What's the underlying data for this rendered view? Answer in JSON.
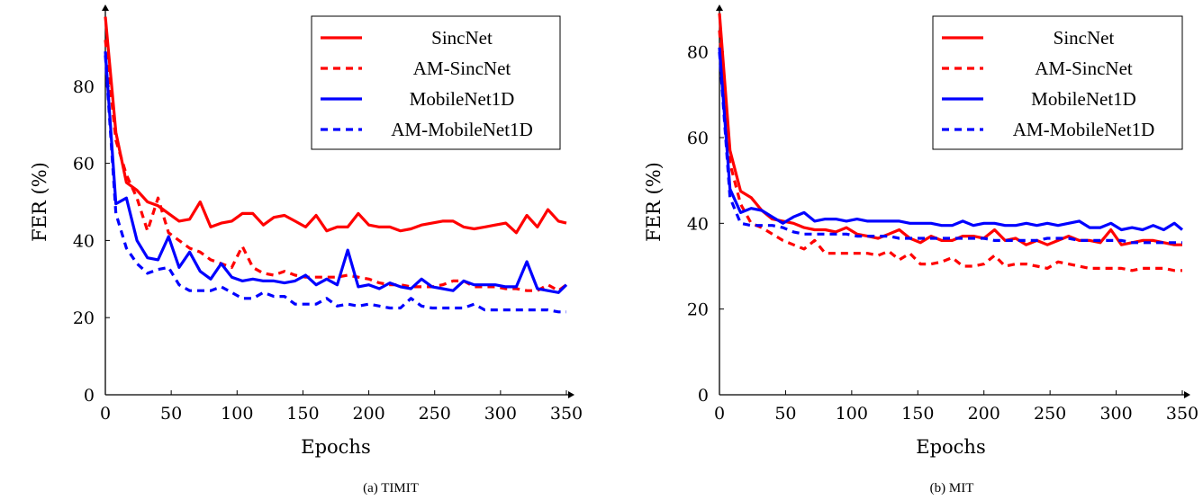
{
  "chart_data": [
    {
      "type": "line",
      "caption": "(a)  TIMIT",
      "xlabel": "Epochs",
      "ylabel": "FER (%)",
      "xlim": [
        0,
        350
      ],
      "ylim": [
        0,
        100
      ],
      "xticks": [
        0,
        50,
        100,
        150,
        200,
        250,
        300,
        350
      ],
      "yticks": [
        0,
        20,
        40,
        60,
        80
      ],
      "legend_position": "top-right",
      "series": [
        {
          "name": "SincNet",
          "color": "#ff0000",
          "dashed": false,
          "x": [
            0,
            8,
            16,
            24,
            32,
            40,
            48,
            56,
            64,
            72,
            80,
            88,
            96,
            104,
            112,
            120,
            128,
            136,
            144,
            152,
            160,
            168,
            176,
            184,
            192,
            200,
            208,
            216,
            224,
            232,
            240,
            248,
            256,
            264,
            272,
            280,
            288,
            296,
            304,
            312,
            320,
            328,
            336,
            344,
            350
          ],
          "y": [
            98,
            68,
            55,
            53,
            50,
            49,
            47,
            45,
            45.5,
            50,
            43.5,
            44.5,
            45,
            47,
            47,
            44,
            46,
            46.5,
            45,
            43.5,
            46.5,
            42.5,
            43.5,
            43.5,
            47,
            44,
            43.5,
            43.5,
            42.5,
            43,
            44,
            44.5,
            45,
            45,
            43.5,
            43,
            43.5,
            44,
            44.5,
            42,
            46.5,
            43.5,
            48,
            45,
            44.5
          ]
        },
        {
          "name": "AM-SincNet",
          "color": "#ff0000",
          "dashed": true,
          "x": [
            0,
            8,
            16,
            24,
            32,
            40,
            48,
            56,
            64,
            72,
            80,
            88,
            96,
            104,
            112,
            120,
            128,
            136,
            144,
            152,
            160,
            168,
            176,
            184,
            192,
            200,
            208,
            216,
            224,
            232,
            240,
            248,
            256,
            264,
            272,
            280,
            288,
            296,
            304,
            312,
            320,
            328,
            336,
            344,
            350
          ],
          "y": [
            92,
            66,
            57,
            51,
            42.5,
            51,
            42,
            40,
            38,
            37,
            35,
            34,
            33,
            38.5,
            33,
            31.5,
            31,
            32,
            31,
            30.5,
            30.5,
            30.5,
            30.5,
            31,
            30.5,
            30,
            29,
            28.5,
            28.5,
            28,
            28,
            28,
            28.5,
            29.5,
            29.5,
            28,
            28,
            28,
            27.5,
            27.5,
            27,
            27,
            28.5,
            27,
            28.5
          ]
        },
        {
          "name": "MobileNet1D",
          "color": "#0000ff",
          "dashed": false,
          "x": [
            0,
            8,
            16,
            24,
            32,
            40,
            48,
            56,
            64,
            72,
            80,
            88,
            96,
            104,
            112,
            120,
            128,
            136,
            144,
            152,
            160,
            168,
            176,
            184,
            192,
            200,
            208,
            216,
            224,
            232,
            240,
            248,
            256,
            264,
            272,
            280,
            288,
            296,
            304,
            312,
            320,
            328,
            336,
            344,
            350
          ],
          "y": [
            89,
            49.5,
            51,
            40,
            35.5,
            35,
            41,
            33,
            37,
            32,
            30,
            34,
            30.5,
            29.5,
            30,
            29.5,
            29.5,
            29,
            29.5,
            31,
            28.5,
            30,
            28.5,
            37.5,
            28,
            28.5,
            27.5,
            29,
            28,
            27.5,
            30,
            28,
            27.5,
            27,
            29.5,
            28.5,
            28.5,
            28.5,
            28,
            28,
            34.5,
            27.5,
            27,
            26.5,
            28.5
          ]
        },
        {
          "name": "AM-MobileNet1D",
          "color": "#0000ff",
          "dashed": true,
          "x": [
            0,
            8,
            16,
            24,
            32,
            40,
            48,
            56,
            64,
            72,
            80,
            88,
            96,
            104,
            112,
            120,
            128,
            136,
            144,
            152,
            160,
            168,
            176,
            184,
            192,
            200,
            208,
            216,
            224,
            232,
            240,
            248,
            256,
            264,
            272,
            280,
            288,
            296,
            304,
            312,
            320,
            328,
            336,
            344,
            350
          ],
          "y": [
            88,
            47,
            38,
            34,
            31.5,
            32.5,
            33,
            28.5,
            27,
            27,
            27,
            28,
            26.5,
            25,
            25,
            26.5,
            25.5,
            25.5,
            23.5,
            23.5,
            23.5,
            25,
            23,
            23.5,
            23,
            23.5,
            23,
            22.5,
            22.5,
            25,
            23,
            22.5,
            22.5,
            22.5,
            22.5,
            23.5,
            22,
            22,
            22,
            22,
            22,
            22,
            22,
            21.5,
            21.5
          ]
        }
      ]
    },
    {
      "type": "line",
      "caption": "(b)  MIT",
      "xlabel": "Epochs",
      "ylabel": "FER (%)",
      "xlim": [
        0,
        350
      ],
      "ylim": [
        0,
        90
      ],
      "xticks": [
        0,
        50,
        100,
        150,
        200,
        250,
        300,
        350
      ],
      "yticks": [
        0,
        20,
        40,
        60,
        80
      ],
      "legend_position": "top-right",
      "series": [
        {
          "name": "SincNet",
          "color": "#ff0000",
          "dashed": false,
          "x": [
            0,
            8,
            16,
            24,
            32,
            40,
            48,
            56,
            64,
            72,
            80,
            88,
            96,
            104,
            112,
            120,
            128,
            136,
            144,
            152,
            160,
            168,
            176,
            184,
            192,
            200,
            208,
            216,
            224,
            232,
            240,
            248,
            256,
            264,
            272,
            280,
            288,
            296,
            304,
            312,
            320,
            328,
            336,
            344,
            350
          ],
          "y": [
            89,
            57,
            47.5,
            46,
            43,
            41,
            40.5,
            40,
            39,
            38.5,
            38.5,
            38,
            39,
            37.5,
            37,
            36.5,
            37.5,
            38.5,
            36.5,
            35.5,
            37,
            36,
            36,
            37,
            37,
            36.5,
            38.5,
            36,
            36.5,
            35,
            36,
            35,
            36,
            37,
            36,
            36,
            35.5,
            38.5,
            35,
            35.5,
            36,
            36,
            35.5,
            35,
            35
          ]
        },
        {
          "name": "AM-SincNet",
          "color": "#ff0000",
          "dashed": true,
          "x": [
            0,
            8,
            16,
            24,
            32,
            40,
            48,
            56,
            64,
            72,
            80,
            88,
            96,
            104,
            112,
            120,
            128,
            136,
            144,
            152,
            160,
            168,
            176,
            184,
            192,
            200,
            208,
            216,
            224,
            232,
            240,
            248,
            256,
            264,
            272,
            280,
            288,
            296,
            304,
            312,
            320,
            328,
            336,
            344,
            350
          ],
          "y": [
            85,
            54,
            44.5,
            40,
            39,
            37.5,
            36,
            35,
            34,
            36,
            33,
            33,
            33,
            33,
            33,
            32.5,
            33.5,
            31.5,
            33,
            30.5,
            30.5,
            31,
            32,
            30,
            30,
            30.5,
            32.5,
            30,
            30.5,
            30.5,
            30,
            29.5,
            31,
            30.5,
            30,
            29.5,
            29.5,
            29.5,
            29.5,
            29,
            29.5,
            29.5,
            29.5,
            29,
            29
          ]
        },
        {
          "name": "MobileNet1D",
          "color": "#0000ff",
          "dashed": false,
          "x": [
            0,
            8,
            16,
            24,
            32,
            40,
            48,
            56,
            64,
            72,
            80,
            88,
            96,
            104,
            112,
            120,
            128,
            136,
            144,
            152,
            160,
            168,
            176,
            184,
            192,
            200,
            208,
            216,
            224,
            232,
            240,
            248,
            256,
            264,
            272,
            280,
            288,
            296,
            304,
            312,
            320,
            328,
            336,
            344,
            350
          ],
          "y": [
            81,
            48,
            42.5,
            43.5,
            43,
            41.5,
            40,
            41.5,
            42.5,
            40.5,
            41,
            41,
            40.5,
            41,
            40.5,
            40.5,
            40.5,
            40.5,
            40,
            40,
            40,
            39.5,
            39.5,
            40.5,
            39.5,
            40,
            40,
            39.5,
            39.5,
            40,
            39.5,
            40,
            39.5,
            40,
            40.5,
            39,
            39,
            40,
            38.5,
            39,
            38.5,
            39.5,
            38.5,
            40,
            38.5
          ]
        },
        {
          "name": "AM-MobileNet1D",
          "color": "#0000ff",
          "dashed": true,
          "x": [
            0,
            8,
            16,
            24,
            32,
            40,
            48,
            56,
            64,
            72,
            80,
            88,
            96,
            104,
            112,
            120,
            128,
            136,
            144,
            152,
            160,
            168,
            176,
            184,
            192,
            200,
            208,
            216,
            224,
            232,
            240,
            248,
            256,
            264,
            272,
            280,
            288,
            296,
            304,
            312,
            320,
            328,
            336,
            344,
            350
          ],
          "y": [
            80,
            46,
            40,
            39.5,
            39.5,
            39.5,
            39,
            38,
            37.5,
            37.5,
            37.5,
            37.5,
            37.5,
            37,
            37,
            37,
            37,
            36.5,
            36.5,
            36.5,
            36.5,
            36.5,
            36.5,
            36.5,
            36.5,
            36.5,
            36,
            36,
            36,
            36,
            36,
            36.5,
            36.5,
            36.5,
            36,
            36,
            36,
            36,
            36,
            35.5,
            35.5,
            35.5,
            35.5,
            35.5,
            35.5
          ]
        }
      ]
    }
  ]
}
